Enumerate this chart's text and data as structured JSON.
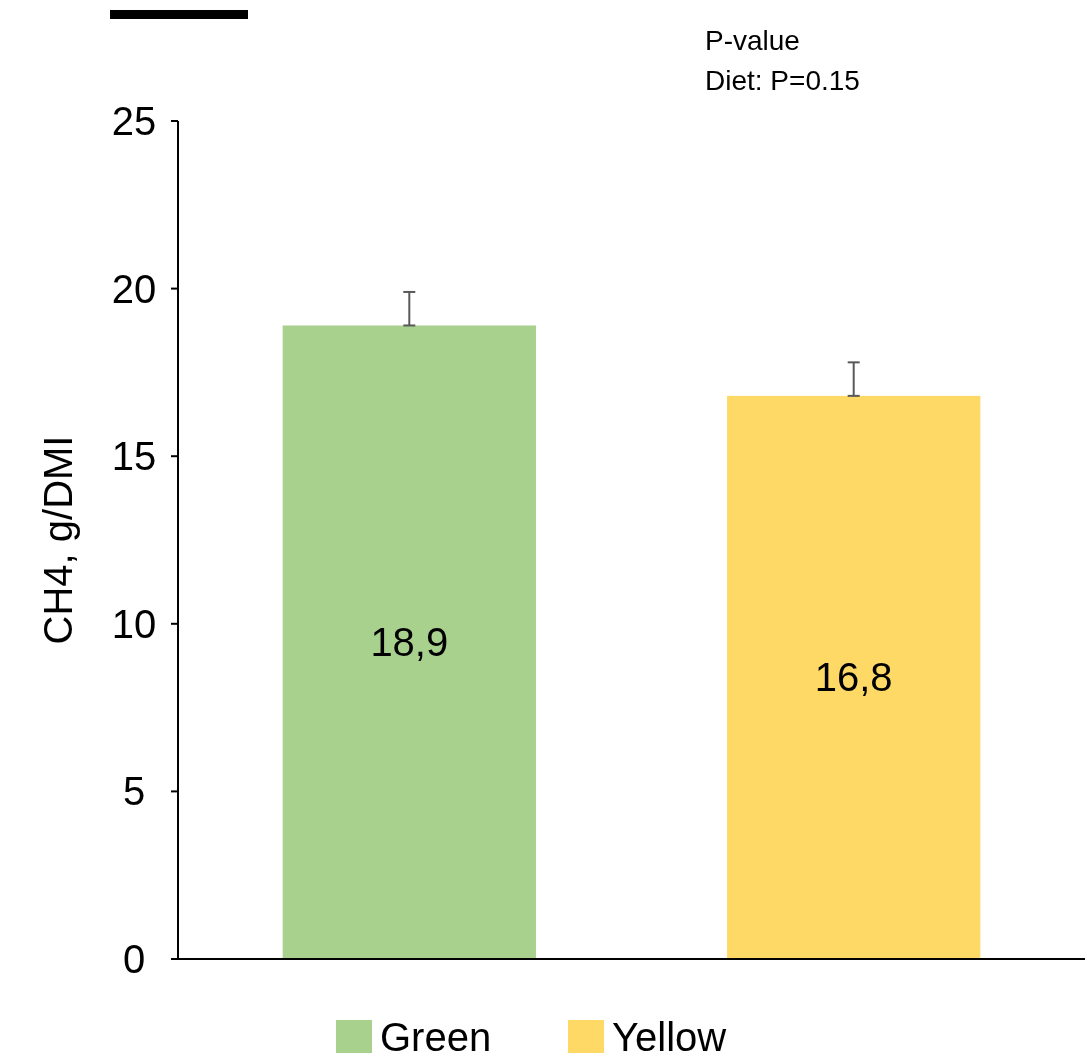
{
  "chart_data": {
    "type": "bar",
    "ylabel": "CH4, g/DMI",
    "categories": [
      null
    ],
    "series": [
      {
        "name": "Green",
        "color": "#a9d18e",
        "values": [
          18.9
        ],
        "value_labels": [
          "18,9"
        ],
        "errors": [
          [
            18.9,
            19.9
          ]
        ]
      },
      {
        "name": "Yellow",
        "color": "#ffd966",
        "values": [
          16.8
        ],
        "value_labels": [
          "16,8"
        ],
        "errors": [
          [
            16.8,
            17.8
          ]
        ]
      }
    ],
    "ylim": [
      0,
      25
    ],
    "yticks": [
      0,
      5,
      10,
      15,
      20,
      25
    ],
    "grid": false,
    "legend": "bottom",
    "annotations": [
      "P-value",
      "Diet: P=0.15"
    ]
  }
}
